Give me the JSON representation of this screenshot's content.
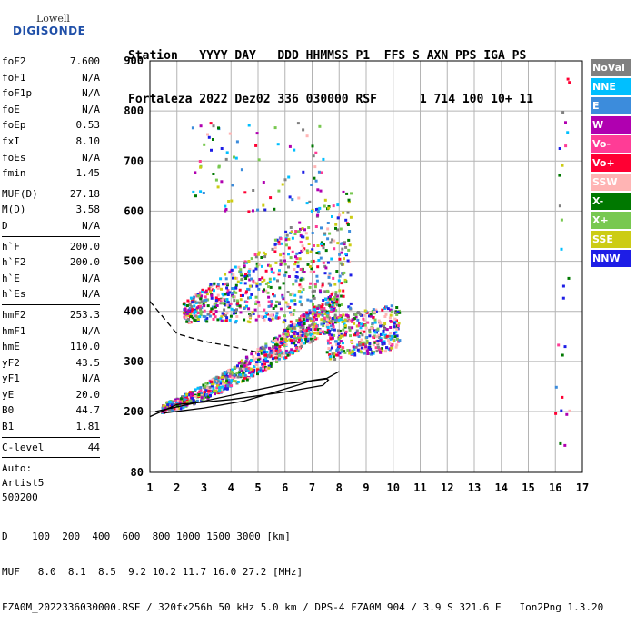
{
  "logo": {
    "line1": "Lowell",
    "line2": "DIGISONDE"
  },
  "header": {
    "labels": "Station   YYYY DAY   DDD HHMMSS P1  FFS S AXN PPS IGA PS",
    "values": "Fortaleza 2022 Dez02 336 030000 RSF      1 714 100 10+ 11"
  },
  "params": [
    {
      "k": "foF2",
      "v": "7.600"
    },
    {
      "k": "foF1",
      "v": "N/A"
    },
    {
      "k": "foF1p",
      "v": "N/A"
    },
    {
      "k": "foE",
      "v": "N/A"
    },
    {
      "k": "foEp",
      "v": "0.53"
    },
    {
      "k": "fxI",
      "v": "8.10"
    },
    {
      "k": "foEs",
      "v": "N/A"
    },
    {
      "k": "fmin",
      "v": "1.45"
    },
    {
      "sep": true
    },
    {
      "k": "MUF(D)",
      "v": "27.18"
    },
    {
      "k": "M(D)",
      "v": "3.58"
    },
    {
      "k": "D",
      "v": "N/A"
    },
    {
      "sep": true
    },
    {
      "k": "h`F",
      "v": "200.0"
    },
    {
      "k": "h`F2",
      "v": "200.0"
    },
    {
      "k": "h`E",
      "v": "N/A"
    },
    {
      "k": "h`Es",
      "v": "N/A"
    },
    {
      "sep": true
    },
    {
      "k": "hmF2",
      "v": "253.3"
    },
    {
      "k": "hmF1",
      "v": "N/A"
    },
    {
      "k": "hmE",
      "v": "110.0"
    },
    {
      "k": "yF2",
      "v": "43.5"
    },
    {
      "k": "yF1",
      "v": "N/A"
    },
    {
      "k": "yE",
      "v": "20.0"
    },
    {
      "k": "B0",
      "v": "44.7"
    },
    {
      "k": "B1",
      "v": "1.81"
    },
    {
      "sep": true
    },
    {
      "k": "C-level",
      "v": "44"
    },
    {
      "sep": true
    }
  ],
  "auto": [
    "Auto:",
    "Artist5",
    "500200"
  ],
  "legend": [
    {
      "label": "NoVal",
      "color": "#808080"
    },
    {
      "label": "NNE",
      "color": "#00bfff"
    },
    {
      "label": "E",
      "color": "#3c8cdc"
    },
    {
      "label": "W",
      "color": "#b000b0"
    },
    {
      "label": "Vo-",
      "color": "#ff3c96"
    },
    {
      "label": "Vo+",
      "color": "#ff0033"
    },
    {
      "label": "SSW",
      "color": "#ffb4b4"
    },
    {
      "label": "X-",
      "color": "#007800"
    },
    {
      "label": "X+",
      "color": "#78c850"
    },
    {
      "label": "SSE",
      "color": "#cccc14"
    },
    {
      "label": "NNW",
      "color": "#1e1ee6"
    }
  ],
  "footer": {
    "line1": "D    100  200  400  600  800 1000 1500 3000 [km]",
    "line2": "MUF   8.0  8.1  8.5  9.2 10.2 11.7 16.0 27.2 [MHz]",
    "line3": "FZA0M_2022336030000.RSF / 320fx256h 50 kHz 5.0 km / DPS-4 FZA0M 904 / 3.9 S 321.6 E   Ion2Png 1.3.20"
  },
  "chart_data": {
    "type": "scatter",
    "x_ticks": [
      1,
      2,
      3,
      4,
      5,
      6,
      7,
      8,
      9,
      10,
      11,
      12,
      13,
      14,
      15,
      16,
      17
    ],
    "y_ticks": [
      80,
      200,
      300,
      400,
      500,
      600,
      700,
      800,
      900
    ],
    "xlim": [
      1,
      17
    ],
    "ylim_km": [
      80,
      900
    ],
    "grid": true,
    "traces": [
      {
        "name": "profile",
        "style": "solid",
        "points": [
          [
            1.2,
            200
          ],
          [
            2.5,
            215
          ],
          [
            4.5,
            238
          ],
          [
            6.0,
            255
          ],
          [
            7.5,
            265
          ],
          [
            8.0,
            280
          ]
        ]
      },
      {
        "name": "trace",
        "style": "solid",
        "points": [
          [
            1.5,
            197
          ],
          [
            3.0,
            207
          ],
          [
            4.5,
            221
          ],
          [
            5.5,
            237
          ],
          [
            6.5,
            253
          ],
          [
            7.0,
            262
          ],
          [
            7.5,
            266
          ],
          [
            7.6,
            263
          ],
          [
            7.4,
            252
          ],
          [
            6.0,
            239
          ],
          [
            4.0,
            224
          ],
          [
            2.0,
            214
          ],
          [
            1.0,
            190
          ]
        ]
      },
      {
        "name": "extrapolated",
        "style": "dashed",
        "points": [
          [
            1.0,
            420
          ],
          [
            2.0,
            355
          ],
          [
            3.0,
            340
          ],
          [
            4.0,
            330
          ],
          [
            5.0,
            318
          ]
        ]
      }
    ]
  }
}
